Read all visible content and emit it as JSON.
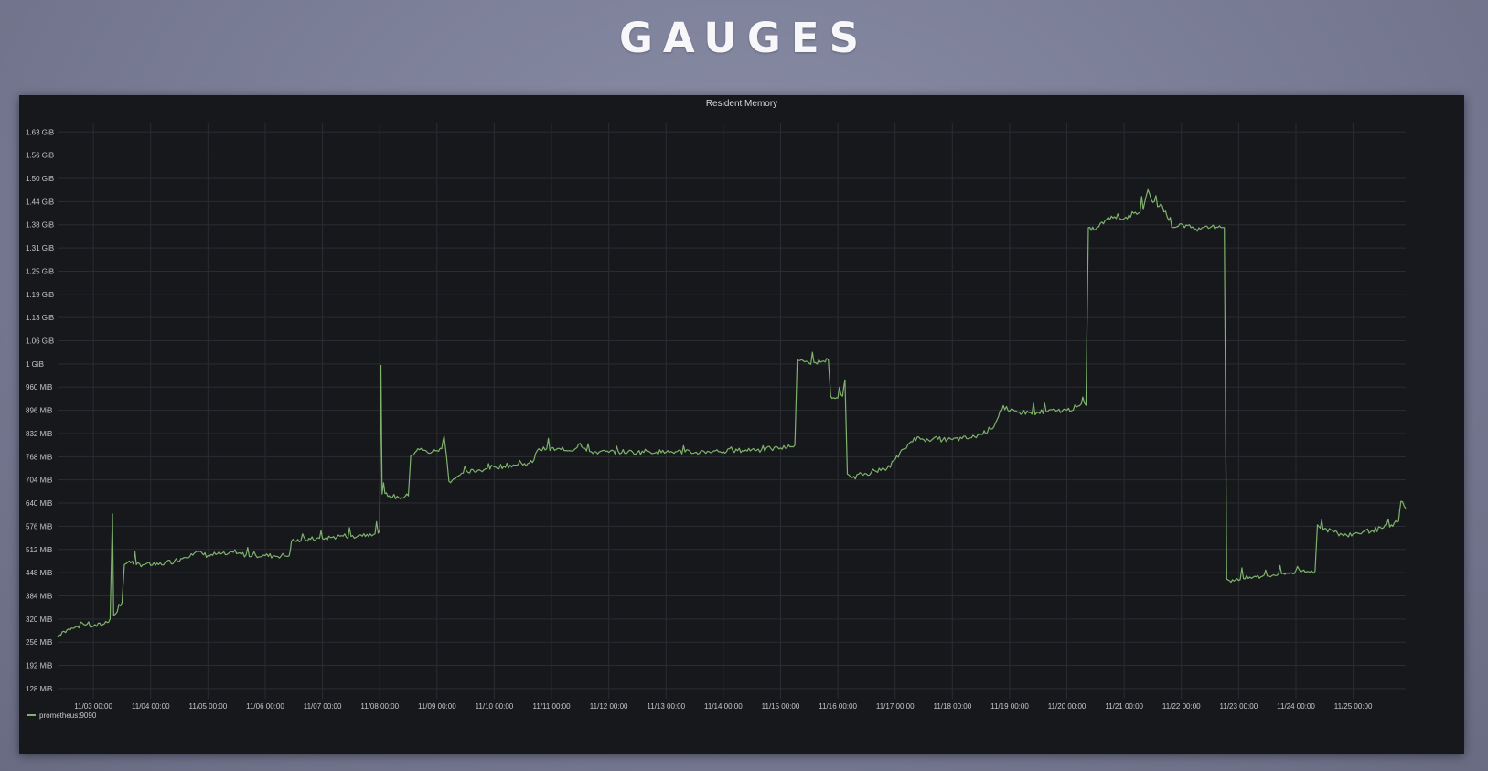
{
  "slide": {
    "title": "GAUGES"
  },
  "colors": {
    "series": "#7eb26d",
    "panel_background": "#17181c",
    "grid": "#2a2c32",
    "text": "#c7c8cc"
  },
  "chart_data": {
    "type": "line",
    "title": "Resident Memory",
    "xlabel": "",
    "ylabel": "",
    "grid": true,
    "legend_position": "bottom-left",
    "x_tick_labels": [
      "11/03 00:00",
      "11/04 00:00",
      "11/05 00:00",
      "11/06 00:00",
      "11/07 00:00",
      "11/08 00:00",
      "11/09 00:00",
      "11/10 00:00",
      "11/11 00:00",
      "11/12 00:00",
      "11/13 00:00",
      "11/14 00:00",
      "11/15 00:00",
      "11/16 00:00",
      "11/17 00:00",
      "11/18 00:00",
      "11/19 00:00",
      "11/20 00:00",
      "11/21 00:00",
      "11/22 00:00",
      "11/23 00:00",
      "11/24 00:00",
      "11/25 00:00"
    ],
    "xlim": [
      "11/02 09:00",
      "11/25 22:00"
    ],
    "y_tick_values": [
      128,
      192,
      256,
      320,
      384,
      448,
      512,
      576,
      640,
      704,
      768,
      832,
      896,
      960,
      1024,
      1088,
      1152,
      1216,
      1280,
      1344,
      1408,
      1472,
      1536,
      1600,
      1664
    ],
    "y_tick_labels": [
      "128 MiB",
      "192 MiB",
      "256 MiB",
      "320 MiB",
      "384 MiB",
      "448 MiB",
      "512 MiB",
      "576 MiB",
      "640 MiB",
      "704 MiB",
      "768 MiB",
      "832 MiB",
      "896 MiB",
      "960 MiB",
      "1 GiB",
      "1.06 GiB",
      "1.13 GiB",
      "1.19 GiB",
      "1.25 GiB",
      "1.31 GiB",
      "1.38 GiB",
      "1.44 GiB",
      "1.50 GiB",
      "1.56 GiB",
      "1.63 GiB"
    ],
    "y_unit": "MiB",
    "ylim": [
      100,
      1690
    ],
    "series": [
      {
        "name": "prometheus:9090",
        "points": [
          [
            "11/02 09:00",
            272
          ],
          [
            "11/02 11:00",
            285
          ],
          [
            "11/02 13:00",
            290
          ],
          [
            "11/02 16:00",
            295
          ],
          [
            "11/02 20:00",
            305
          ],
          [
            "11/03 00:00",
            300
          ],
          [
            "11/03 04:00",
            305
          ],
          [
            "11/03 07:00",
            320
          ],
          [
            "11/03 08:00",
            610
          ],
          [
            "11/03 08:30",
            330
          ],
          [
            "11/03 10:00",
            340
          ],
          [
            "11/03 12:00",
            365
          ],
          [
            "11/03 13:00",
            470
          ],
          [
            "11/03 15:00",
            480
          ],
          [
            "11/03 18:00",
            470
          ],
          [
            "11/03 22:00",
            472
          ],
          [
            "11/04 02:00",
            468
          ],
          [
            "11/04 06:00",
            475
          ],
          [
            "11/04 10:00",
            480
          ],
          [
            "11/04 14:00",
            490
          ],
          [
            "11/04 17:00",
            500
          ],
          [
            "11/04 19:00",
            505
          ],
          [
            "11/05 00:00",
            495
          ],
          [
            "11/05 04:00",
            500
          ],
          [
            "11/05 08:00",
            498
          ],
          [
            "11/05 12:00",
            500
          ],
          [
            "11/05 16:00",
            497
          ],
          [
            "11/05 20:00",
            496
          ],
          [
            "11/06 00:00",
            495
          ],
          [
            "11/06 04:00",
            494
          ],
          [
            "11/06 08:00",
            495
          ],
          [
            "11/06 10:00",
            494
          ],
          [
            "11/06 11:00",
            535
          ],
          [
            "11/06 15:00",
            537
          ],
          [
            "11/06 19:00",
            540
          ],
          [
            "11/07 00:00",
            542
          ],
          [
            "11/07 04:00",
            545
          ],
          [
            "11/07 08:00",
            550
          ],
          [
            "11/07 12:00",
            548
          ],
          [
            "11/07 16:00",
            552
          ],
          [
            "11/07 20:00",
            555
          ],
          [
            "11/07 22:00",
            555
          ],
          [
            "11/08 00:00",
            565
          ],
          [
            "11/08 00:30",
            1020
          ],
          [
            "11/08 01:00",
            665
          ],
          [
            "11/08 04:00",
            660
          ],
          [
            "11/08 08:00",
            655
          ],
          [
            "11/08 12:00",
            660
          ],
          [
            "11/08 13:00",
            770
          ],
          [
            "11/08 16:00",
            790
          ],
          [
            "11/08 20:00",
            780
          ],
          [
            "11/09 00:00",
            785
          ],
          [
            "11/09 02:00",
            790
          ],
          [
            "11/09 03:00",
            825
          ],
          [
            "11/09 04:00",
            770
          ],
          [
            "11/09 05:00",
            700
          ],
          [
            "11/09 09:00",
            715
          ],
          [
            "11/09 13:00",
            725
          ],
          [
            "11/09 17:00",
            730
          ],
          [
            "11/09 21:00",
            735
          ],
          [
            "11/10 00:00",
            740
          ],
          [
            "11/10 04:00",
            742
          ],
          [
            "11/10 08:00",
            745
          ],
          [
            "11/10 12:00",
            745
          ],
          [
            "11/10 16:00",
            752
          ],
          [
            "11/10 18:00",
            785
          ],
          [
            "11/10 22:00",
            790
          ],
          [
            "11/11 02:00",
            788
          ],
          [
            "11/11 06:00",
            785
          ],
          [
            "11/11 10:00",
            790
          ],
          [
            "11/11 12:00",
            805
          ],
          [
            "11/11 16:00",
            782
          ],
          [
            "11/11 20:00",
            781
          ],
          [
            "11/12 00:00",
            780
          ],
          [
            "11/12 04:00",
            782
          ],
          [
            "11/12 08:00",
            781
          ],
          [
            "11/12 12:00",
            780
          ],
          [
            "11/12 16:00",
            783
          ],
          [
            "11/12 20:00",
            781
          ],
          [
            "11/13 00:00",
            780
          ],
          [
            "11/13 04:00",
            782
          ],
          [
            "11/13 08:00",
            781
          ],
          [
            "11/13 12:00",
            779
          ],
          [
            "11/13 16:00",
            782
          ],
          [
            "11/13 20:00",
            784
          ],
          [
            "11/14 00:00",
            782
          ],
          [
            "11/14 04:00",
            785
          ],
          [
            "11/14 08:00",
            785
          ],
          [
            "11/14 12:00",
            788
          ],
          [
            "11/14 16:00",
            787
          ],
          [
            "11/14 20:00",
            790
          ],
          [
            "11/15 00:00",
            792
          ],
          [
            "11/15 04:00",
            795
          ],
          [
            "11/15 06:00",
            800
          ],
          [
            "11/15 07:00",
            1035
          ],
          [
            "11/15 10:00",
            1030
          ],
          [
            "11/15 14:00",
            1028
          ],
          [
            "11/15 18:00",
            1032
          ],
          [
            "11/15 20:00",
            1035
          ],
          [
            "11/15 21:00",
            935
          ],
          [
            "11/16 00:00",
            930
          ],
          [
            "11/16 02:00",
            935
          ],
          [
            "11/16 03:00",
            980
          ],
          [
            "11/16 04:00",
            720
          ],
          [
            "11/16 06:00",
            710
          ],
          [
            "11/16 10:00",
            720
          ],
          [
            "11/16 14:00",
            725
          ],
          [
            "11/16 18:00",
            730
          ],
          [
            "11/16 20:00",
            730
          ],
          [
            "11/17 00:00",
            760
          ],
          [
            "11/17 04:00",
            790
          ],
          [
            "11/17 08:00",
            820
          ],
          [
            "11/17 12:00",
            815
          ],
          [
            "11/17 16:00",
            818
          ],
          [
            "11/17 20:00",
            815
          ],
          [
            "11/18 00:00",
            815
          ],
          [
            "11/18 04:00",
            818
          ],
          [
            "11/18 08:00",
            820
          ],
          [
            "11/18 12:00",
            830
          ],
          [
            "11/18 16:00",
            845
          ],
          [
            "11/18 18:00",
            860
          ],
          [
            "11/18 20:00",
            895
          ],
          [
            "11/19 00:00",
            893
          ],
          [
            "11/19 04:00",
            891
          ],
          [
            "11/19 08:00",
            890
          ],
          [
            "11/19 12:00",
            891
          ],
          [
            "11/19 16:00",
            893
          ],
          [
            "11/19 20:00",
            895
          ],
          [
            "11/20 00:00",
            896
          ],
          [
            "11/20 04:00",
            905
          ],
          [
            "11/20 08:00",
            910
          ],
          [
            "11/20 09:00",
            1400
          ],
          [
            "11/20 12:00",
            1395
          ],
          [
            "11/20 16:00",
            1420
          ],
          [
            "11/20 20:00",
            1430
          ],
          [
            "11/21 00:00",
            1425
          ],
          [
            "11/21 04:00",
            1440
          ],
          [
            "11/21 08:00",
            1450
          ],
          [
            "11/21 10:00",
            1505
          ],
          [
            "11/21 12:00",
            1470
          ],
          [
            "11/21 16:00",
            1460
          ],
          [
            "11/21 20:00",
            1400
          ],
          [
            "11/22 00:00",
            1410
          ],
          [
            "11/22 04:00",
            1400
          ],
          [
            "11/22 08:00",
            1395
          ],
          [
            "11/22 12:00",
            1400
          ],
          [
            "11/22 16:00",
            1405
          ],
          [
            "11/22 18:00",
            1400
          ],
          [
            "11/22 19:00",
            430
          ],
          [
            "11/22 22:00",
            425
          ],
          [
            "11/23 02:00",
            432
          ],
          [
            "11/23 06:00",
            435
          ],
          [
            "11/23 10:00",
            438
          ],
          [
            "11/23 14:00",
            440
          ],
          [
            "11/23 18:00",
            445
          ],
          [
            "11/23 22:00",
            448
          ],
          [
            "11/24 02:00",
            450
          ],
          [
            "11/24 06:00",
            450
          ],
          [
            "11/24 08:00",
            452
          ],
          [
            "11/24 09:00",
            580
          ],
          [
            "11/24 12:00",
            570
          ],
          [
            "11/24 16:00",
            560
          ],
          [
            "11/24 20:00",
            550
          ],
          [
            "11/25 00:00",
            555
          ],
          [
            "11/25 04:00",
            560
          ],
          [
            "11/25 08:00",
            565
          ],
          [
            "11/25 12:00",
            570
          ],
          [
            "11/25 16:00",
            580
          ],
          [
            "11/25 19:00",
            590
          ],
          [
            "11/25 20:00",
            645
          ],
          [
            "11/25 22:00",
            625
          ]
        ]
      }
    ]
  }
}
